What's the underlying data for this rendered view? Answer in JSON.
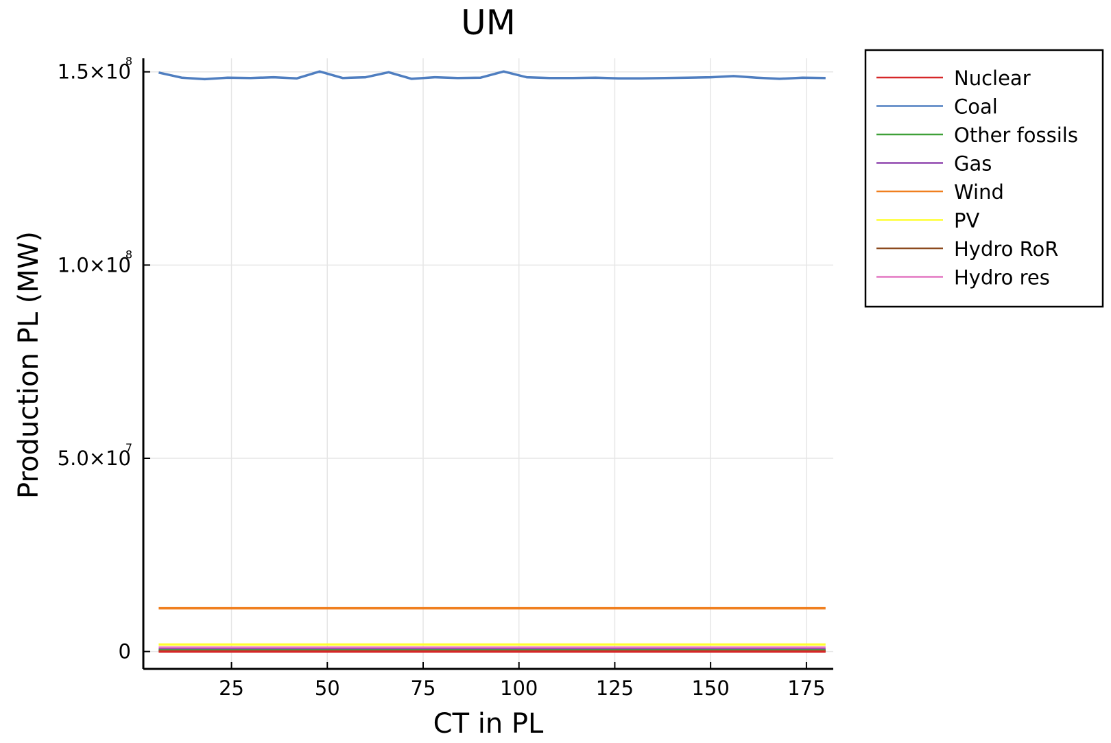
{
  "chart_data": {
    "type": "line",
    "title": "UM",
    "xlabel": "CT in PL",
    "ylabel": "Production PL (MW)",
    "xlim": [
      2,
      182
    ],
    "ylim": [
      -4500000,
      153500000
    ],
    "xticks": [
      25,
      50,
      75,
      100,
      125,
      150,
      175
    ],
    "yticks": [
      {
        "value": 0,
        "label": "0",
        "exp": ""
      },
      {
        "value": 50000000,
        "label": "5.0×10",
        "exp": "7"
      },
      {
        "value": 100000000,
        "label": "1.0×10",
        "exp": "8"
      },
      {
        "value": 150000000,
        "label": "1.5×10",
        "exp": "8"
      }
    ],
    "grid": true,
    "legend_position": "outer top-right",
    "x": [
      6,
      12,
      18,
      24,
      30,
      36,
      42,
      48,
      54,
      60,
      66,
      72,
      78,
      84,
      90,
      96,
      102,
      108,
      114,
      120,
      126,
      132,
      138,
      144,
      150,
      156,
      162,
      168,
      174,
      180
    ],
    "series": [
      {
        "name": "Nuclear",
        "color": "#d62728",
        "values": [
          0,
          0,
          0,
          0,
          0,
          0,
          0,
          0,
          0,
          0,
          0,
          0,
          0,
          0,
          0,
          0,
          0,
          0,
          0,
          0,
          0,
          0,
          0,
          0,
          0,
          0,
          0,
          0,
          0,
          0
        ]
      },
      {
        "name": "Coal",
        "color": "#4f7ec0",
        "values": [
          149800000,
          148500000,
          148100000,
          148500000,
          148400000,
          148600000,
          148300000,
          150100000,
          148400000,
          148600000,
          149900000,
          148200000,
          148600000,
          148400000,
          148500000,
          150100000,
          148600000,
          148400000,
          148400000,
          148500000,
          148300000,
          148300000,
          148400000,
          148500000,
          148600000,
          148900000,
          148500000,
          148200000,
          148500000,
          148400000
        ]
      },
      {
        "name": "Other fossils",
        "color": "#3fa038",
        "values": [
          300000,
          300000,
          300000,
          300000,
          300000,
          300000,
          300000,
          300000,
          300000,
          300000,
          300000,
          300000,
          300000,
          300000,
          300000,
          300000,
          300000,
          300000,
          300000,
          300000,
          300000,
          300000,
          300000,
          300000,
          300000,
          300000,
          300000,
          300000,
          300000,
          300000
        ]
      },
      {
        "name": "Gas",
        "color": "#8e44ad",
        "values": [
          500000,
          500000,
          500000,
          500000,
          500000,
          500000,
          500000,
          500000,
          500000,
          500000,
          500000,
          500000,
          500000,
          500000,
          500000,
          500000,
          500000,
          500000,
          500000,
          500000,
          500000,
          500000,
          500000,
          500000,
          500000,
          500000,
          500000,
          500000,
          500000,
          500000
        ]
      },
      {
        "name": "Wind",
        "color": "#f07f1f",
        "values": [
          11200000,
          11200000,
          11200000,
          11200000,
          11200000,
          11200000,
          11200000,
          11200000,
          11200000,
          11200000,
          11200000,
          11200000,
          11200000,
          11200000,
          11200000,
          11200000,
          11200000,
          11200000,
          11200000,
          11200000,
          11200000,
          11200000,
          11200000,
          11200000,
          11200000,
          11200000,
          11200000,
          11200000,
          11200000,
          11200000
        ]
      },
      {
        "name": "PV",
        "color": "#ffff2e",
        "values": [
          1800000,
          1800000,
          1800000,
          1800000,
          1800000,
          1800000,
          1800000,
          1800000,
          1800000,
          1800000,
          1800000,
          1800000,
          1800000,
          1800000,
          1800000,
          1800000,
          1800000,
          1800000,
          1800000,
          1800000,
          1800000,
          1800000,
          1800000,
          1800000,
          1800000,
          1800000,
          1800000,
          1800000,
          1800000,
          1800000
        ]
      },
      {
        "name": "Hydro RoR",
        "color": "#8c4a1e",
        "values": [
          200000,
          200000,
          200000,
          200000,
          200000,
          200000,
          200000,
          200000,
          200000,
          200000,
          200000,
          200000,
          200000,
          200000,
          200000,
          200000,
          200000,
          200000,
          200000,
          200000,
          200000,
          200000,
          200000,
          200000,
          200000,
          200000,
          200000,
          200000,
          200000,
          200000
        ]
      },
      {
        "name": "Hydro res",
        "color": "#e377c2",
        "values": [
          1000000,
          1000000,
          1000000,
          1000000,
          1000000,
          1000000,
          1000000,
          1000000,
          1000000,
          1000000,
          1000000,
          1000000,
          1000000,
          1000000,
          1000000,
          1000000,
          1000000,
          1000000,
          1000000,
          1000000,
          1000000,
          1000000,
          1000000,
          1000000,
          1000000,
          1000000,
          1000000,
          1000000,
          1000000,
          1000000
        ]
      }
    ]
  }
}
